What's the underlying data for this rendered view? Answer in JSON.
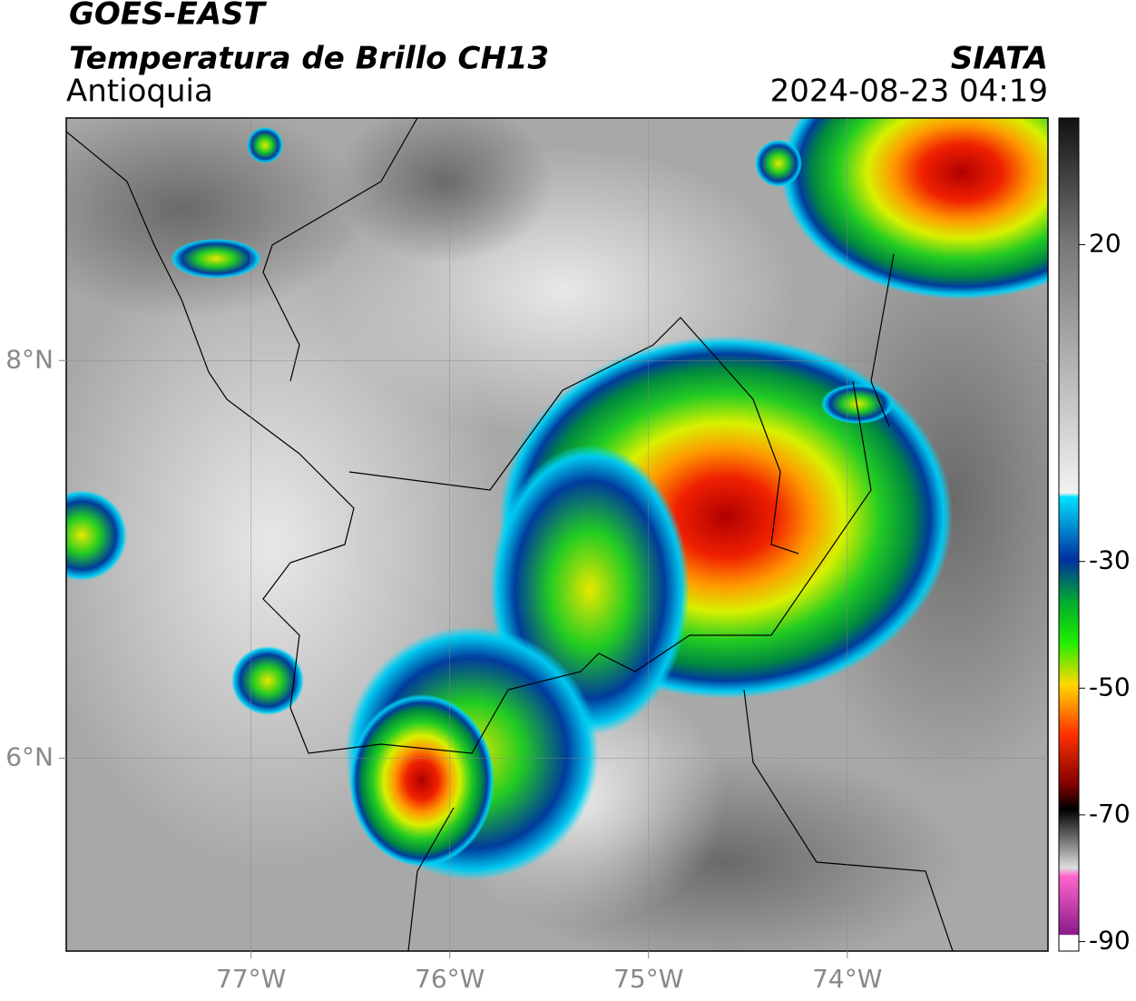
{
  "header": {
    "satellite": "GOES-EAST",
    "product": "Temperatura de Brillo CH13",
    "region": "Antioquia",
    "source": "SIATA",
    "datetime": "2024-08-23 04:19"
  },
  "map": {
    "lonlim": [
      -77.93,
      -72.99
    ],
    "latlim": [
      5.03,
      9.22
    ],
    "lonticks": [
      {
        "value": -77,
        "label": "77°W"
      },
      {
        "value": -76,
        "label": "76°W"
      },
      {
        "value": -75,
        "label": "75°W"
      },
      {
        "value": -74,
        "label": "74°W"
      }
    ],
    "latticks": [
      {
        "value": 8,
        "label": "8°N"
      },
      {
        "value": 6,
        "label": "6°N"
      }
    ],
    "grid": true
  },
  "colorbar": {
    "lim": [
      -91.5,
      40
    ],
    "ticks": [
      20,
      -30,
      -50,
      -70,
      -90
    ]
  }
}
